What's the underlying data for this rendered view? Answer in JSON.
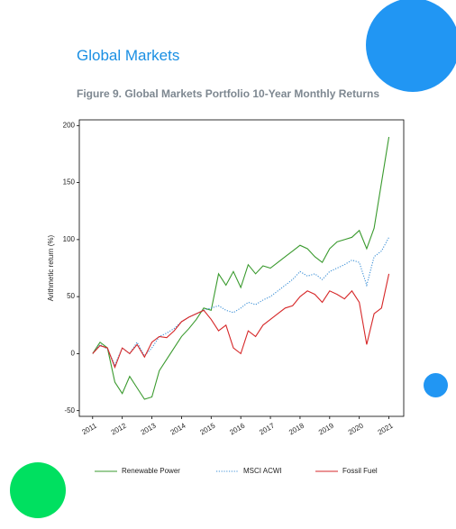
{
  "header": {
    "title": "Global Markets"
  },
  "figure_caption": "Figure 9. Global Markets Portfolio 10-Year Monthly Returns",
  "chart_data": {
    "type": "line",
    "y_label": "Arithmetic return (%)",
    "x": [
      2011.0,
      2011.25,
      2011.5,
      2011.75,
      2012.0,
      2012.25,
      2012.5,
      2012.75,
      2013.0,
      2013.25,
      2013.5,
      2013.75,
      2014.0,
      2014.25,
      2014.5,
      2014.75,
      2015.0,
      2015.25,
      2015.5,
      2015.75,
      2016.0,
      2016.25,
      2016.5,
      2016.75,
      2017.0,
      2017.25,
      2017.5,
      2017.75,
      2018.0,
      2018.25,
      2018.5,
      2018.75,
      2019.0,
      2019.25,
      2019.5,
      2019.75,
      2020.0,
      2020.25,
      2020.5,
      2020.75,
      2021.0
    ],
    "series": [
      {
        "name": "Renewable Power",
        "color": "#3a9a2e",
        "style": "solid",
        "values": [
          0,
          10,
          5,
          -25,
          -35,
          -20,
          -30,
          -40,
          -38,
          -15,
          -5,
          5,
          15,
          22,
          30,
          40,
          38,
          70,
          60,
          72,
          58,
          78,
          70,
          77,
          75,
          80,
          85,
          90,
          95,
          92,
          85,
          80,
          92,
          98,
          100,
          102,
          108,
          92,
          110,
          150,
          190
        ]
      },
      {
        "name": "MSCI ACWI",
        "color": "#3b8fd6",
        "style": "dotted",
        "values": [
          0,
          8,
          4,
          -10,
          5,
          0,
          10,
          -2,
          5,
          15,
          18,
          22,
          28,
          32,
          35,
          38,
          40,
          42,
          38,
          36,
          40,
          45,
          43,
          47,
          50,
          55,
          60,
          65,
          72,
          68,
          70,
          65,
          72,
          75,
          78,
          82,
          80,
          60,
          85,
          90,
          102
        ]
      },
      {
        "name": "Fossil Fuel",
        "color": "#d62728",
        "style": "solid",
        "values": [
          0,
          7,
          5,
          -12,
          5,
          0,
          8,
          -3,
          10,
          15,
          14,
          20,
          28,
          32,
          35,
          38,
          30,
          20,
          25,
          5,
          0,
          20,
          15,
          25,
          30,
          35,
          40,
          42,
          50,
          55,
          52,
          45,
          55,
          52,
          48,
          55,
          45,
          8,
          35,
          40,
          70
        ]
      }
    ],
    "xlim": [
      2010.55,
      2021.5
    ],
    "xticks": [
      2011,
      2012,
      2013,
      2014,
      2015,
      2016,
      2017,
      2018,
      2019,
      2020,
      2021
    ],
    "ylim": [
      -55,
      205
    ],
    "yticks": [
      -50,
      0,
      50,
      100,
      150,
      200
    ]
  }
}
